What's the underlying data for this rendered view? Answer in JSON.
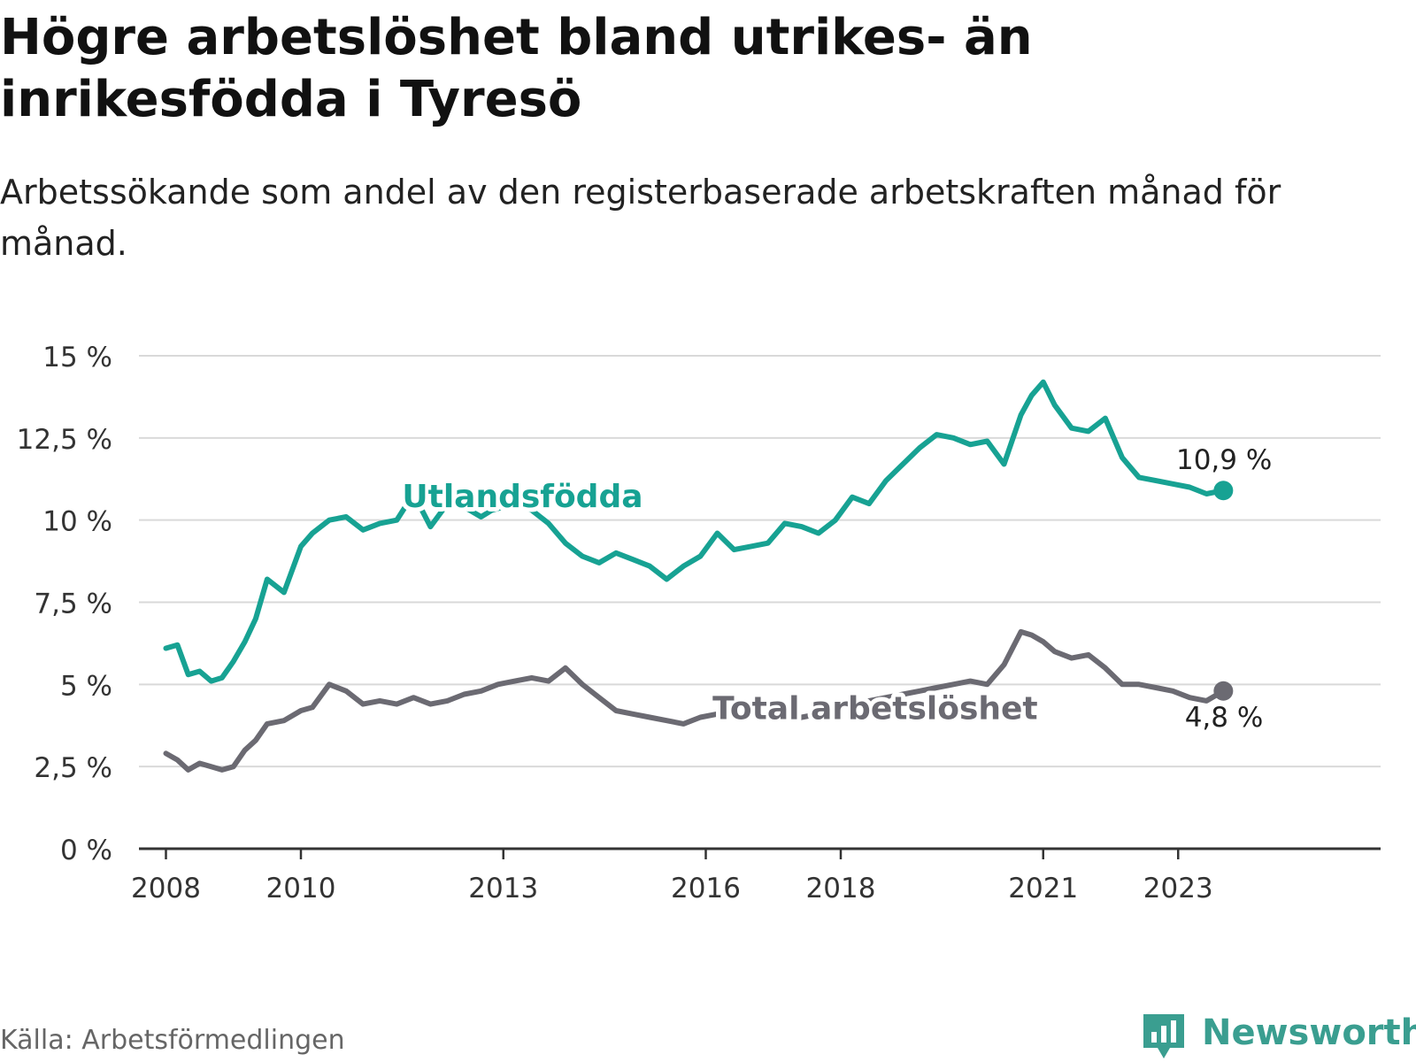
{
  "title": "Högre arbetslöshet bland utrikes- än inrikesfödda i Tyresö",
  "subtitle": "Arbetssökande som andel av den registerbaserade arbetskraften månad för månad.",
  "source": "Källa: Arbetsförmedlingen",
  "brand": "Newsworthy",
  "colors": {
    "foreign": "#17a293",
    "total": "#6b6a72",
    "grid": "#d9d9d9",
    "axis": "#333333",
    "brand": "#3a9e90"
  },
  "chart_data": {
    "type": "line",
    "title": "Högre arbetslöshet bland utrikes- än inrikesfödda i Tyresö",
    "xlabel": "",
    "ylabel": "",
    "ylim": [
      0,
      15
    ],
    "xlim": [
      2007.6,
      2026.0
    ],
    "y_ticks": [
      0,
      2.5,
      5,
      7.5,
      10,
      12.5,
      15
    ],
    "y_tick_labels": [
      "0 %",
      "2,5 %",
      "5 %",
      "7,5 %",
      "10 %",
      "12,5 %",
      "15 %"
    ],
    "x_ticks": [
      2008,
      2010,
      2013,
      2016,
      2018,
      2021,
      2023
    ],
    "x_tick_labels": [
      "2008",
      "2010",
      "2013",
      "2016",
      "2018",
      "2021",
      "2023"
    ],
    "grid": true,
    "series": [
      {
        "name": "Utlandsfödda",
        "label": "Utlandsfödda",
        "end_label": "10,9 %",
        "x": [
          2008.0,
          2008.17,
          2008.33,
          2008.5,
          2008.67,
          2008.83,
          2009.0,
          2009.17,
          2009.33,
          2009.5,
          2009.75,
          2010.0,
          2010.17,
          2010.42,
          2010.67,
          2010.92,
          2011.17,
          2011.42,
          2011.67,
          2011.92,
          2012.17,
          2012.42,
          2012.67,
          2012.83,
          2013.0,
          2013.17,
          2013.42,
          2013.67,
          2013.92,
          2014.17,
          2014.42,
          2014.67,
          2014.92,
          2015.17,
          2015.42,
          2015.67,
          2015.92,
          2016.17,
          2016.42,
          2016.67,
          2016.92,
          2017.17,
          2017.42,
          2017.67,
          2017.92,
          2018.17,
          2018.42,
          2018.67,
          2018.92,
          2019.17,
          2019.42,
          2019.67,
          2019.92,
          2020.17,
          2020.42,
          2020.67,
          2020.83,
          2021.0,
          2021.17,
          2021.42,
          2021.67,
          2021.92,
          2022.17,
          2022.42,
          2022.67,
          2022.92,
          2023.17,
          2023.42,
          2023.67
        ],
        "values": [
          6.1,
          6.2,
          5.3,
          5.4,
          5.1,
          5.2,
          5.7,
          6.3,
          7.0,
          8.2,
          7.8,
          9.2,
          9.6,
          10.0,
          10.1,
          9.7,
          9.9,
          10.0,
          10.8,
          9.8,
          10.5,
          10.4,
          10.1,
          10.3,
          10.4,
          10.5,
          10.3,
          9.9,
          9.3,
          8.9,
          8.7,
          9.0,
          8.8,
          8.6,
          8.2,
          8.6,
          8.9,
          9.6,
          9.1,
          9.2,
          9.3,
          9.9,
          9.8,
          9.6,
          10.0,
          10.7,
          10.5,
          11.2,
          11.7,
          12.2,
          12.6,
          12.5,
          12.3,
          12.4,
          11.7,
          13.2,
          13.8,
          14.2,
          13.5,
          12.8,
          12.7,
          13.1,
          11.9,
          11.3,
          11.2,
          11.1,
          11.0,
          10.8,
          10.9
        ]
      },
      {
        "name": "Total arbetslöshet",
        "label": "Total arbetslöshet",
        "end_label": "4,8 %",
        "x": [
          2008.0,
          2008.17,
          2008.33,
          2008.5,
          2008.67,
          2008.83,
          2009.0,
          2009.17,
          2009.33,
          2009.5,
          2009.75,
          2010.0,
          2010.17,
          2010.42,
          2010.67,
          2010.92,
          2011.17,
          2011.42,
          2011.67,
          2011.92,
          2012.17,
          2012.42,
          2012.67,
          2012.92,
          2013.17,
          2013.42,
          2013.67,
          2013.92,
          2014.17,
          2014.42,
          2014.67,
          2014.92,
          2015.17,
          2015.42,
          2015.67,
          2015.92,
          2016.17,
          2016.42,
          2016.67,
          2016.92,
          2017.17,
          2017.42,
          2017.67,
          2017.92,
          2018.17,
          2018.42,
          2018.67,
          2018.92,
          2019.17,
          2019.42,
          2019.67,
          2019.92,
          2020.17,
          2020.42,
          2020.67,
          2020.83,
          2021.0,
          2021.17,
          2021.42,
          2021.67,
          2021.92,
          2022.17,
          2022.42,
          2022.67,
          2022.92,
          2023.17,
          2023.42,
          2023.67
        ],
        "values": [
          2.9,
          2.7,
          2.4,
          2.6,
          2.5,
          2.4,
          2.5,
          3.0,
          3.3,
          3.8,
          3.9,
          4.2,
          4.3,
          5.0,
          4.8,
          4.4,
          4.5,
          4.4,
          4.6,
          4.4,
          4.5,
          4.7,
          4.8,
          5.0,
          5.1,
          5.2,
          5.1,
          5.5,
          5.0,
          4.6,
          4.2,
          4.1,
          4.0,
          3.9,
          3.8,
          4.0,
          4.1,
          4.2,
          4.1,
          4.0,
          3.9,
          4.0,
          4.1,
          4.2,
          4.4,
          4.5,
          4.6,
          4.7,
          4.8,
          4.9,
          5.0,
          5.1,
          5.0,
          5.6,
          6.6,
          6.5,
          6.3,
          6.0,
          5.8,
          5.9,
          5.5,
          5.0,
          5.0,
          4.9,
          4.8,
          4.6,
          4.5,
          4.8
        ]
      }
    ]
  }
}
